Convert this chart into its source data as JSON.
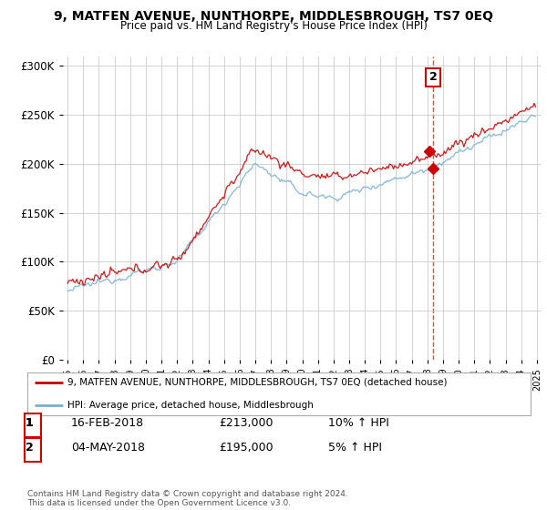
{
  "title": "9, MATFEN AVENUE, NUNTHORPE, MIDDLESBROUGH, TS7 0EQ",
  "subtitle": "Price paid vs. HM Land Registry's House Price Index (HPI)",
  "legend_label_red": "9, MATFEN AVENUE, NUNTHORPE, MIDDLESBROUGH, TS7 0EQ (detached house)",
  "legend_label_blue": "HPI: Average price, detached house, Middlesbrough",
  "transaction1_date": "16-FEB-2018",
  "transaction1_price": "£213,000",
  "transaction1_hpi": "10% ↑ HPI",
  "transaction1_year": 2018.125,
  "transaction1_value": 213000,
  "transaction2_date": "04-MAY-2018",
  "transaction2_price": "£195,000",
  "transaction2_hpi": "5% ↑ HPI",
  "transaction2_year": 2018.375,
  "transaction2_value": 195000,
  "footer": "Contains HM Land Registry data © Crown copyright and database right 2024.\nThis data is licensed under the Open Government Licence v3.0.",
  "color_red": "#cc0000",
  "color_blue": "#7aafd4",
  "background_color": "#ffffff",
  "grid_color": "#cccccc",
  "ylim": [
    0,
    310000
  ],
  "yticks": [
    0,
    50000,
    100000,
    150000,
    200000,
    250000,
    300000
  ],
  "ytick_labels": [
    "£0",
    "£50K",
    "£100K",
    "£150K",
    "£200K",
    "£250K",
    "£300K"
  ],
  "start_year": 1995,
  "end_year": 2025
}
